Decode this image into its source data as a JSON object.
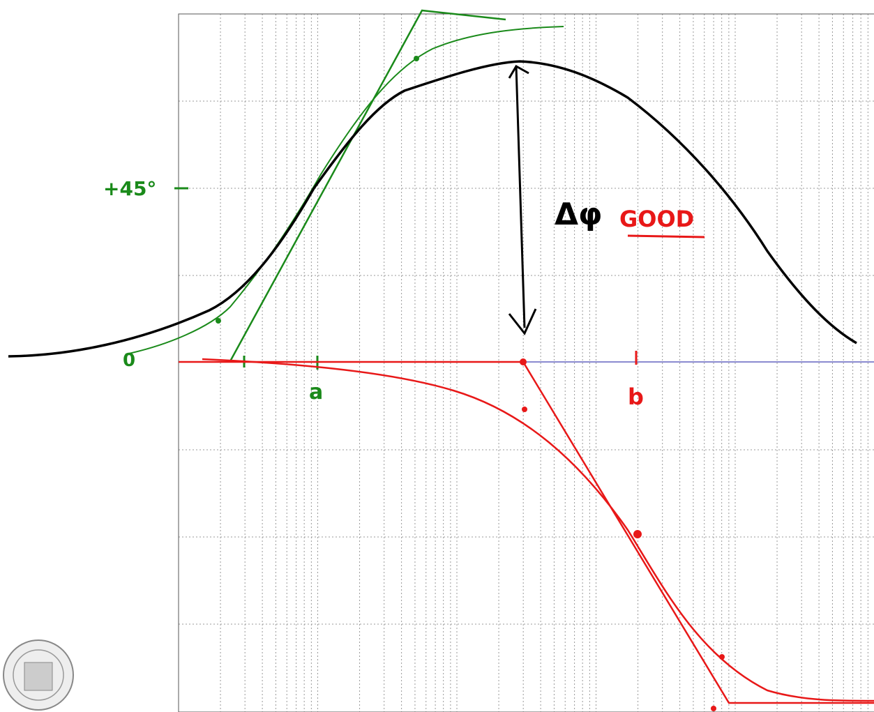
{
  "annotations": {
    "plus45": "+45°",
    "zero": "0",
    "a": "a",
    "b": "b",
    "delta_phi": "Δφ",
    "good": "GOOD"
  }
}
